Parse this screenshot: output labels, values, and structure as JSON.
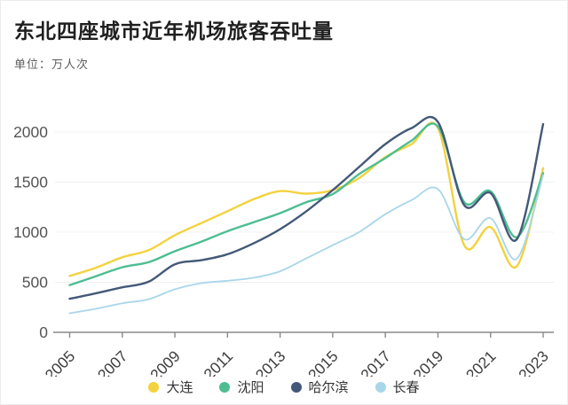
{
  "header": {
    "title": "东北四座城市近年机场旅客吞吐量",
    "subtitle": "单位：万人次"
  },
  "chart_data": {
    "type": "line",
    "title": "东北四座城市近年机场旅客吞吐量",
    "unit_label": "单位：万人次",
    "x": [
      2005,
      2006,
      2007,
      2008,
      2009,
      2010,
      2011,
      2012,
      2013,
      2014,
      2015,
      2016,
      2017,
      2018,
      2019,
      2020,
      2021,
      2022,
      2023
    ],
    "x_tick_labels": [
      "2005",
      "2007",
      "2009",
      "2011",
      "2013",
      "2015",
      "2017",
      "2019",
      "2021",
      "2023"
    ],
    "y_ticks": [
      0,
      500,
      1000,
      1500,
      2000
    ],
    "ylim": [
      0,
      2250
    ],
    "grid": "faint horizontal gridlines",
    "smooth": true,
    "legend_position": "bottom-center",
    "axis_color": "#8a8a8a",
    "tick_label_color": "#3f3f3f",
    "y_label_color": "#555555",
    "gridline_color": "#f0f0f0",
    "series": [
      {
        "id": "dalian",
        "name": "大连",
        "color": "#F3D23F",
        "values": [
          563,
          645,
          750,
          820,
          970,
          1090,
          1210,
          1330,
          1410,
          1385,
          1420,
          1540,
          1750,
          1880,
          2040,
          870,
          1050,
          660,
          1640
        ]
      },
      {
        "id": "shenyang",
        "name": "沈阳",
        "color": "#4DBE92",
        "values": [
          472,
          560,
          650,
          700,
          810,
          905,
          1010,
          1100,
          1190,
          1300,
          1380,
          1580,
          1740,
          1915,
          2055,
          1300,
          1410,
          950,
          1590
        ]
      },
      {
        "id": "harbin",
        "name": "哈尔滨",
        "color": "#445978",
        "values": [
          335,
          390,
          450,
          505,
          680,
          720,
          780,
          890,
          1030,
          1210,
          1420,
          1650,
          1880,
          2040,
          2100,
          1270,
          1390,
          930,
          2080
        ]
      },
      {
        "id": "changchun",
        "name": "长春",
        "color": "#A9D6E9",
        "values": [
          190,
          235,
          290,
          330,
          430,
          490,
          515,
          545,
          610,
          740,
          870,
          1000,
          1180,
          1320,
          1430,
          930,
          1140,
          735,
          1570
        ]
      }
    ]
  }
}
